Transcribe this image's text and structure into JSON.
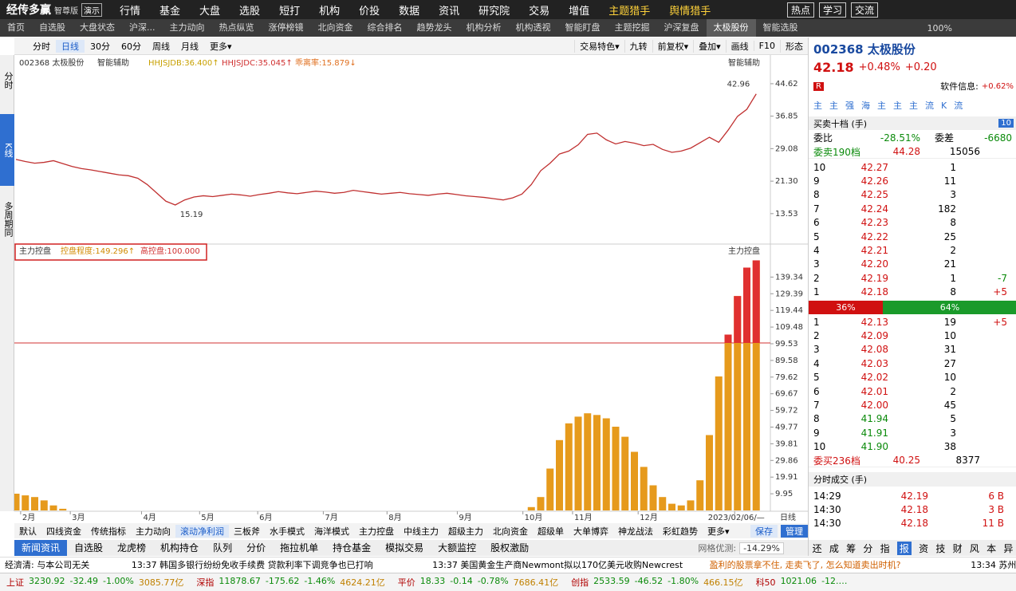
{
  "menu": {
    "logo": "经传多赢",
    "edition": "智尊版",
    "demo": "演示",
    "items": [
      "行情",
      "基金",
      "大盘",
      "选股",
      "短打",
      "机构",
      "价投",
      "数据",
      "资讯",
      "研究院",
      "交易",
      "增值",
      "主题猎手",
      "舆情猎手"
    ],
    "right": [
      "热点",
      "学习",
      "交流"
    ]
  },
  "tabs": {
    "items": [
      "首页",
      "自选股",
      "大盘状态",
      "沪深...",
      "主力动向",
      "热点纵览",
      "涨停榜镜",
      "北向资金",
      "综合排名",
      "趋势龙头",
      "机构分析",
      "机构透视",
      "智能盯盘",
      "主题挖掘",
      "沪深复盘",
      "太极股份",
      "智能选股"
    ],
    "zoom": "100%"
  },
  "toolbar": {
    "left": [
      "分时",
      "日线",
      "30分",
      "60分",
      "周线",
      "月线",
      "更多▾"
    ],
    "right": [
      "交易特色▾",
      "九转",
      "前复权▾",
      "叠加▾",
      "画线",
      "F10",
      "形态"
    ]
  },
  "side": [
    "分时",
    "K线",
    "多周期同屏"
  ],
  "price_header": {
    "code": "002368 太极股份",
    "assist": "智能辅助",
    "indicators": [
      "HHJSJDB:36.400↑",
      "HHJSJDC:35.045↑",
      "乖离率:15.879↓"
    ],
    "right": "智能辅助"
  },
  "indicator_header": {
    "name": "主力控盘",
    "items": [
      "控盘程度:149.296↑",
      "高控盘:100.000"
    ],
    "right": "主力控盘"
  },
  "chart_data": [
    {
      "type": "line",
      "color": "#c03030",
      "ylim": [
        7.2,
        51.1
      ],
      "yticks": [
        44.62,
        36.85,
        29.08,
        {
          "value": 21.3,
          "label": "21.30"
        },
        13.53
      ],
      "values": [
        26.5,
        26,
        25.6,
        25.8,
        26.2,
        25.5,
        24.8,
        24.3,
        24,
        23.6,
        23.2,
        22.8,
        22.6,
        22,
        20.5,
        18.5,
        16.5,
        15.6,
        16.8,
        17.5,
        17.8,
        17.6,
        17.9,
        18.2,
        18,
        17.7,
        18.1,
        18.4,
        18.8,
        18.5,
        18.3,
        18.6,
        18.9,
        18.7,
        18.4,
        18.6,
        19.1,
        18.8,
        18.5,
        18.2,
        18.4,
        18.6,
        18.3,
        18.1,
        17.9,
        18.2,
        18.4,
        18.1,
        17.8,
        17.6,
        17.4,
        17.1,
        16.8,
        17.3,
        18.2,
        20.5,
        23.8,
        25.6,
        27.8,
        28.5,
        30,
        32.5,
        32.8,
        31.2,
        30.2,
        30.8,
        30.4,
        29.8,
        30.1,
        28.9,
        28.2,
        28.5,
        29.2,
        30.5,
        31.8,
        30.6,
        33.5,
        36.8,
        38.5,
        42.18
      ],
      "annotations": [
        {
          "label": "42.96",
          "x": 79,
          "y": 42.96
        },
        {
          "label": "15.19",
          "x": 17,
          "y": 15.19
        }
      ]
    },
    {
      "type": "bar",
      "color": "#e69a1c",
      "excess_color": "#e03030",
      "threshold": 100,
      "ylim": [
        0,
        150
      ],
      "yticks": [
        139.34,
        129.39,
        119.44,
        109.48,
        99.53,
        89.58,
        79.62,
        69.67,
        59.72,
        49.77,
        39.81,
        29.86,
        19.91,
        9.95
      ],
      "values": [
        10,
        9,
        8,
        6,
        3,
        1,
        0,
        0,
        0,
        0,
        0,
        0,
        0,
        0,
        0,
        0,
        0,
        0,
        0,
        0,
        0,
        0,
        0,
        0,
        0,
        0,
        0,
        0,
        0,
        0,
        0,
        0,
        0,
        0,
        0,
        0,
        0,
        0,
        0,
        0,
        0,
        0,
        0,
        0,
        0,
        0,
        0,
        0,
        0,
        0,
        0,
        0,
        0,
        0,
        0,
        2,
        8,
        25,
        42,
        52,
        56,
        58,
        57,
        55,
        50,
        44,
        35,
        26,
        15,
        8,
        4,
        3,
        6,
        18,
        45,
        80,
        105,
        128,
        145,
        149.3
      ],
      "xticks": [
        {
          "value": 0.5,
          "label": "2月"
        },
        {
          "value": 5.8,
          "label": "3月"
        },
        {
          "value": 13.4,
          "label": "4月"
        },
        {
          "value": 19.6,
          "label": "5月"
        },
        {
          "value": 25.8,
          "label": "6月"
        },
        {
          "value": 32.8,
          "label": "7月"
        },
        {
          "value": 39.6,
          "label": "8月"
        },
        {
          "value": 47.1,
          "label": "9月"
        },
        {
          "value": 54.1,
          "label": "10月"
        },
        {
          "value": 59.4,
          "label": "11月"
        },
        {
          "value": 66.4,
          "label": "12月"
        },
        {
          "value": 76.7,
          "label": "2023/02/06/—"
        }
      ]
    }
  ],
  "period_label": "日线",
  "indicator_bar": {
    "items": [
      "默认",
      "四线资金",
      "传统指标",
      "主力动向",
      "滚动净利润",
      "三板斧",
      "水手模式",
      "海洋模式",
      "主力控盘",
      "中线主力",
      "超级主力",
      "北向资金",
      "超级单",
      "大单博弈",
      "神龙战法",
      "彩虹趋势",
      "更多▾"
    ],
    "save": "保存",
    "manage": "管理"
  },
  "bottom_tabs": {
    "items": [
      "新闻资讯",
      "自选股",
      "龙虎榜",
      "机构持仓",
      "队列",
      "分价",
      "拖拉机单",
      "持仓基金",
      "模拟交易",
      "大额监控",
      "股权激励"
    ],
    "grid_label": "网格优测:",
    "grid_value": "-14.29%"
  },
  "news": [
    "经濟清: 与本公司无关",
    "13:37 韩国多银行纷纷免收手续费 贷款利率下调竞争也已打响",
    "13:37 美国黄金生产商Newmont拟以170亿美元收购Newcrest",
    "盈利的股票拿不住, 走卖飞了, 怎么知道卖出时机?",
    "13:34 苏州"
  ],
  "ticker": [
    {
      "name": "上证",
      "price": "3230.92",
      "chg": "-32.49",
      "pct": "-1.00%",
      "amount": "3085.77亿"
    },
    {
      "name": "深指",
      "price": "11878.67",
      "chg": "-175.62",
      "pct": "-1.46%",
      "amount": "4624.21亿"
    },
    {
      "name": "平价",
      "price": "18.33",
      "chg": "-0.14",
      "pct": "-0.78%",
      "amount": "7686.41亿"
    },
    {
      "name": "创指",
      "price": "2533.59",
      "chg": "-46.52",
      "pct": "-1.80%",
      "amount": "466.15亿"
    },
    {
      "name": "科50",
      "price": "1021.06",
      "chg": "-12.…"
    }
  ],
  "quote": {
    "title": "002368 太极股份",
    "price": "42.18",
    "pct": "+0.48%",
    "chg": "+0.20",
    "badge": "R",
    "sector_label": "软件信息:",
    "sector_value": "+0.62%",
    "buttons": [
      "主",
      "主",
      "强",
      "海",
      "主",
      "主",
      "主",
      "流",
      "K",
      "流"
    ],
    "book_title": "买卖十档 (手)",
    "book_levels": "10",
    "ratio_label": "委比",
    "ratio": "-28.51%",
    "diff_label": "委差",
    "diff": "-6680",
    "sell_total_label": "委卖190档",
    "sell_total_price": "44.28",
    "sell_total_vol": "15056",
    "sells": [
      {
        "level": "10",
        "price": "42.27",
        "volume": "1",
        "color": "#d01010"
      },
      {
        "level": "9",
        "price": "42.26",
        "volume": "11",
        "color": "#d01010"
      },
      {
        "level": "8",
        "price": "42.25",
        "volume": "3",
        "color": "#d01010"
      },
      {
        "level": "7",
        "price": "42.24",
        "volume": "182",
        "color": "#d01010"
      },
      {
        "level": "6",
        "price": "42.23",
        "volume": "8",
        "color": "#d01010"
      },
      {
        "level": "5",
        "price": "42.22",
        "volume": "25",
        "color": "#d01010"
      },
      {
        "level": "4",
        "price": "42.21",
        "volume": "2",
        "color": "#d01010"
      },
      {
        "level": "3",
        "price": "42.20",
        "volume": "21",
        "color": "#d01010"
      },
      {
        "level": "2",
        "price": "42.19",
        "volume": "1",
        "change": "-7",
        "color": "#d01010"
      },
      {
        "level": "1",
        "price": "42.18",
        "volume": "8",
        "change": "+5",
        "color": "#d01010"
      }
    ],
    "split": [
      "36%",
      "64%"
    ],
    "buys": [
      {
        "level": "1",
        "price": "42.13",
        "volume": "19",
        "change": "+5",
        "color": "#d01010"
      },
      {
        "level": "2",
        "price": "42.09",
        "volume": "10",
        "color": "#d01010"
      },
      {
        "level": "3",
        "price": "42.08",
        "volume": "31",
        "color": "#d01010"
      },
      {
        "level": "4",
        "price": "42.03",
        "volume": "27",
        "color": "#d01010"
      },
      {
        "level": "5",
        "price": "42.02",
        "volume": "10",
        "color": "#d01010"
      },
      {
        "level": "6",
        "price": "42.01",
        "volume": "2",
        "color": "#d01010"
      },
      {
        "level": "7",
        "price": "42.00",
        "volume": "45",
        "color": "#d01010"
      },
      {
        "level": "8",
        "price": "41.94",
        "volume": "5",
        "color": "#0a8a0a"
      },
      {
        "level": "9",
        "price": "41.91",
        "volume": "3",
        "color": "#0a8a0a"
      },
      {
        "level": "10",
        "price": "41.90",
        "volume": "38",
        "color": "#0a8a0a"
      }
    ],
    "buy_total_label": "委买236档",
    "buy_total_price": "40.25",
    "buy_total_vol": "8377",
    "trades_title": "分时成交 (手)",
    "trades": [
      [
        "14:29",
        "42.19",
        "6 B"
      ],
      [
        "14:30",
        "42.18",
        "3 B"
      ],
      [
        "14:30",
        "42.18",
        "11 B"
      ]
    ],
    "tabs": [
      "还",
      "成",
      "筹",
      "分",
      "指",
      "报",
      "资",
      "技",
      "财",
      "风",
      "本",
      "异"
    ]
  }
}
